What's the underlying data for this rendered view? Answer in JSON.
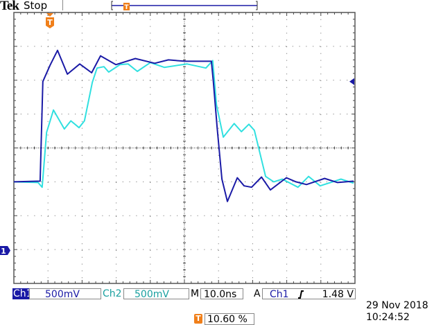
{
  "header": {
    "brand": "Tek",
    "status": "Stop"
  },
  "colors": {
    "ch1": "#1a1aa6",
    "ch2": "#30e0e0",
    "trigger": "#f07f1a",
    "grid": "#555555"
  },
  "markers": {
    "ch1_ground": "1",
    "trigger_position": "T"
  },
  "readout": {
    "ch1_label": "Ch1",
    "ch1_scale": "500mV",
    "ch2_label": "Ch2",
    "ch2_scale": "500mV",
    "timebase_label": "M",
    "timebase": "10.0ns",
    "trigger_label": "A",
    "trigger_source": "Ch1",
    "trigger_slope_icon": "rising-edge-icon",
    "trigger_level": "1.48 V",
    "trigger_pos_icon": "T",
    "trigger_pos": "10.60 %",
    "date": "29 Nov 2018",
    "time": "10:24:52"
  },
  "chart_data": {
    "type": "line",
    "xlabel": "",
    "ylabel": "",
    "x_units": "ns",
    "y_units": "V",
    "xlim": [
      0,
      100
    ],
    "ylim": [
      -1.5,
      2.5
    ],
    "x_per_div": 10,
    "y_per_div": 0.5,
    "grid": true,
    "trigger_level": 1.48,
    "series": [
      {
        "name": "Ch1",
        "color": "#1a1aa6",
        "points": [
          [
            0,
            0
          ],
          [
            7.7,
            0.01
          ],
          [
            8.5,
            1.48
          ],
          [
            10.6,
            1.72
          ],
          [
            12.8,
            1.94
          ],
          [
            15.7,
            1.59
          ],
          [
            19.3,
            1.74
          ],
          [
            22.8,
            1.61
          ],
          [
            25.4,
            1.86
          ],
          [
            29.9,
            1.73
          ],
          [
            35.6,
            1.82
          ],
          [
            41.3,
            1.75
          ],
          [
            45.3,
            1.8
          ],
          [
            50.2,
            1.78
          ],
          [
            57.5,
            1.78
          ],
          [
            57.9,
            1.78
          ],
          [
            58.5,
            1.47
          ],
          [
            59.6,
            0.8
          ],
          [
            61.0,
            0.04
          ],
          [
            62.6,
            -0.29
          ],
          [
            65.5,
            0.06
          ],
          [
            67.5,
            -0.06
          ],
          [
            69.7,
            -0.08
          ],
          [
            72.6,
            0.07
          ],
          [
            75.2,
            -0.12
          ],
          [
            79.9,
            0.06
          ],
          [
            82.7,
            0
          ],
          [
            85.8,
            -0.04
          ],
          [
            91.1,
            0.05
          ],
          [
            94.9,
            -0.01
          ],
          [
            99.6,
            0.01
          ]
        ]
      },
      {
        "name": "Ch2",
        "color": "#30e0e0",
        "points": [
          [
            0,
            0
          ],
          [
            7.1,
            -0.01
          ],
          [
            8.3,
            -0.08
          ],
          [
            9.6,
            0.73
          ],
          [
            11.6,
            1.06
          ],
          [
            14.8,
            0.78
          ],
          [
            16.7,
            0.9
          ],
          [
            19.1,
            0.8
          ],
          [
            20.7,
            0.9
          ],
          [
            23.0,
            1.47
          ],
          [
            24.4,
            1.68
          ],
          [
            26.4,
            1.7
          ],
          [
            27.8,
            1.62
          ],
          [
            31.1,
            1.73
          ],
          [
            33.5,
            1.74
          ],
          [
            36.2,
            1.63
          ],
          [
            40.0,
            1.76
          ],
          [
            44.1,
            1.69
          ],
          [
            50.8,
            1.74
          ],
          [
            56.3,
            1.68
          ],
          [
            58.3,
            1.79
          ],
          [
            59.4,
            1.14
          ],
          [
            61.4,
            0.66
          ],
          [
            64.6,
            0.86
          ],
          [
            66.7,
            0.74
          ],
          [
            68.9,
            0.85
          ],
          [
            70.5,
            0.76
          ],
          [
            73.8,
            0.08
          ],
          [
            76.2,
            0
          ],
          [
            78.7,
            0.04
          ],
          [
            83.3,
            -0.08
          ],
          [
            86.4,
            0.08
          ],
          [
            89.8,
            -0.06
          ],
          [
            95.9,
            0.04
          ],
          [
            99.6,
            -0.02
          ]
        ]
      }
    ]
  }
}
